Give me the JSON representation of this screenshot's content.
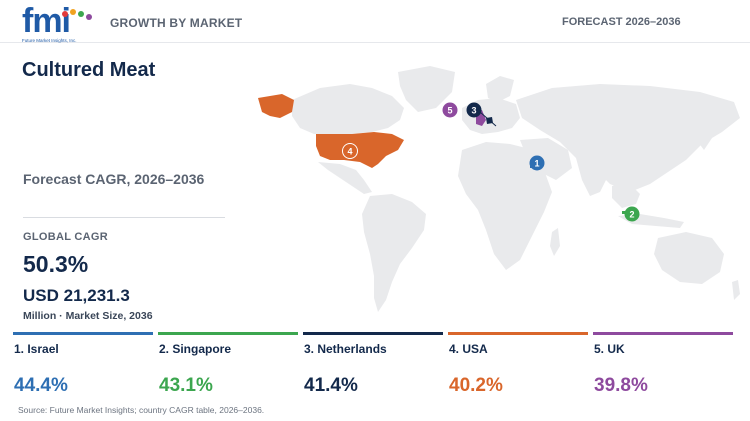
{
  "header": {
    "logo_text": "fmi",
    "logo_tagline": "Future Market Insights, Inc.",
    "left_label": "GROWTH BY MARKET",
    "right_label": "FORECAST 2026–2036"
  },
  "title": "Cultured Meat",
  "subtitle": "Forecast CAGR, 2026–2036",
  "global": {
    "label": "GLOBAL CAGR",
    "cagr": "50.3%",
    "market_size": "USD 21,231.3",
    "market_size_unit": "Million · Market Size, 2036"
  },
  "map": {
    "land_color": "#e9eaec",
    "markers": [
      {
        "rank": "1",
        "country": "Israel",
        "color": "#2e6fb3"
      },
      {
        "rank": "2",
        "country": "Singapore",
        "color": "#3ca64f"
      },
      {
        "rank": "3",
        "country": "Netherlands",
        "color": "#13294b"
      },
      {
        "rank": "4",
        "country": "USA",
        "color": "#d9662b"
      },
      {
        "rank": "5",
        "country": "UK",
        "color": "#8e4a9e"
      }
    ]
  },
  "countries": [
    {
      "label": "1. Israel",
      "cagr": "44.4%",
      "color": "#2e6fb3"
    },
    {
      "label": "2. Singapore",
      "cagr": "43.1%",
      "color": "#3ca64f"
    },
    {
      "label": "3. Netherlands",
      "cagr": "41.4%",
      "color": "#13294b"
    },
    {
      "label": "4. USA",
      "cagr": "40.2%",
      "color": "#d9662b"
    },
    {
      "label": "5. UK",
      "cagr": "39.8%",
      "color": "#8e4a9e"
    }
  ],
  "source": "Source: Future Market Insights; country CAGR table, 2026–2036."
}
